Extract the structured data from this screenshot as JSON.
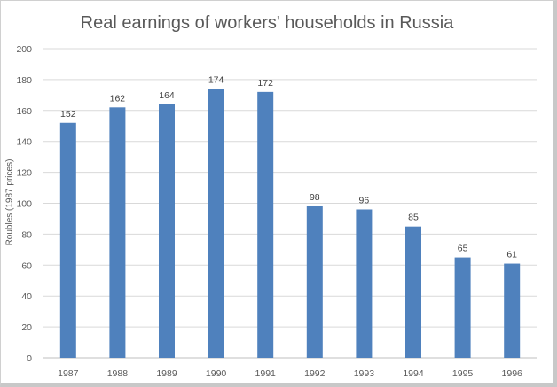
{
  "chart_data": {
    "type": "bar",
    "title": "Real earnings of workers' households  in Russia",
    "xlabel": "",
    "ylabel": "Roubles (1987 prices)",
    "categories": [
      "1987",
      "1988",
      "1989",
      "1990",
      "1991",
      "1992",
      "1993",
      "1994",
      "1995",
      "1996"
    ],
    "values": [
      152,
      162,
      164,
      174,
      172,
      98,
      96,
      85,
      65,
      61
    ],
    "ylim": [
      0,
      200
    ],
    "yticks": [
      0,
      20,
      40,
      60,
      80,
      100,
      120,
      140,
      160,
      180,
      200
    ],
    "grid": true,
    "legend": "none",
    "data_labels": true,
    "bar_color": "#4f81bd"
  }
}
